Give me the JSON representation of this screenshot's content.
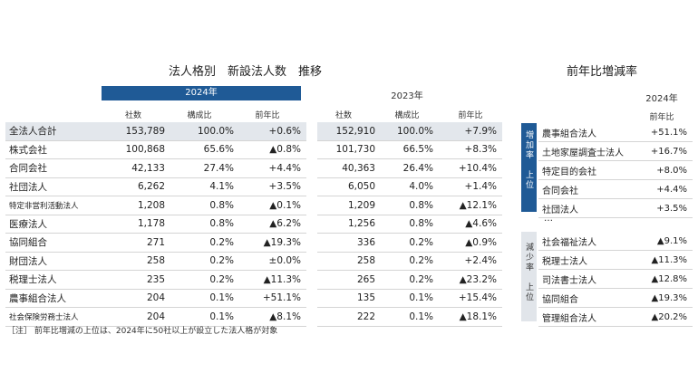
{
  "main_title": "法人格別　新設法人数　推移",
  "right_title": "前年比増減率",
  "year_2024": "2024年",
  "year_2023": "2023年",
  "col_headers": [
    "社数",
    "構成比",
    "前年比"
  ],
  "rows": [
    {
      "name": "全法人合計",
      "c24": "153,789",
      "r24": "100.0%",
      "y24": "+0.6%",
      "c23": "152,910",
      "r23": "100.0%",
      "y23": "+7.9%"
    },
    {
      "name": "株式会社",
      "c24": "100,868",
      "r24": "65.6%",
      "y24": "▲0.8%",
      "c23": "101,730",
      "r23": "66.5%",
      "y23": "+8.3%"
    },
    {
      "name": "合同会社",
      "c24": "42,133",
      "r24": "27.4%",
      "y24": "+4.4%",
      "c23": "40,363",
      "r23": "26.4%",
      "y23": "+10.4%"
    },
    {
      "name": "社団法人",
      "c24": "6,262",
      "r24": "4.1%",
      "y24": "+3.5%",
      "c23": "6,050",
      "r23": "4.0%",
      "y23": "+1.4%"
    },
    {
      "name": "特定非営利活動法人",
      "c24": "1,208",
      "r24": "0.8%",
      "y24": "▲0.1%",
      "c23": "1,209",
      "r23": "0.8%",
      "y23": "▲12.1%"
    },
    {
      "name": "医療法人",
      "c24": "1,178",
      "r24": "0.8%",
      "y24": "▲6.2%",
      "c23": "1,256",
      "r23": "0.8%",
      "y23": "▲4.6%"
    },
    {
      "name": "協同組合",
      "c24": "271",
      "r24": "0.2%",
      "y24": "▲19.3%",
      "c23": "336",
      "r23": "0.2%",
      "y23": "▲0.9%"
    },
    {
      "name": "財団法人",
      "c24": "258",
      "r24": "0.2%",
      "y24": "±0.0%",
      "c23": "258",
      "r23": "0.2%",
      "y23": "+2.4%"
    },
    {
      "name": "税理士法人",
      "c24": "235",
      "r24": "0.2%",
      "y24": "▲11.3%",
      "c23": "265",
      "r23": "0.2%",
      "y23": "▲23.2%"
    },
    {
      "name": "農事組合法人",
      "c24": "204",
      "r24": "0.1%",
      "y24": "+51.1%",
      "c23": "135",
      "r23": "0.1%",
      "y23": "+15.4%"
    },
    {
      "name": "社会保険労務士法人",
      "c24": "204",
      "r24": "0.1%",
      "y24": "▲8.1%",
      "c23": "222",
      "r23": "0.1%",
      "y23": "▲18.1%"
    }
  ],
  "right_year": "2024年",
  "right_header": "前年比",
  "increase_tag": "増加率　上位",
  "decrease_tag": "減少率　上位",
  "increase_rows": [
    {
      "name": "農事組合法人",
      "value": "+51.1%"
    },
    {
      "name": "土地家屋調査士法人",
      "value": "+16.7%"
    },
    {
      "name": "特定目的会社",
      "value": "+8.0%"
    },
    {
      "name": "合同会社",
      "value": "+4.4%"
    },
    {
      "name": "社団法人",
      "value": "+3.5%"
    }
  ],
  "ellipsis": "…",
  "decrease_rows": [
    {
      "name": "社会福祉法人",
      "value": "▲9.1%"
    },
    {
      "name": "税理士法人",
      "value": "▲11.3%"
    },
    {
      "name": "司法書士法人",
      "value": "▲12.8%"
    },
    {
      "name": "協同組合",
      "value": "▲19.3%"
    },
    {
      "name": "管理組合法人",
      "value": "▲20.2%"
    }
  ],
  "note": "［注］ 前年比増減の上位は、2024年に50社以上が設立した法人格が対象"
}
